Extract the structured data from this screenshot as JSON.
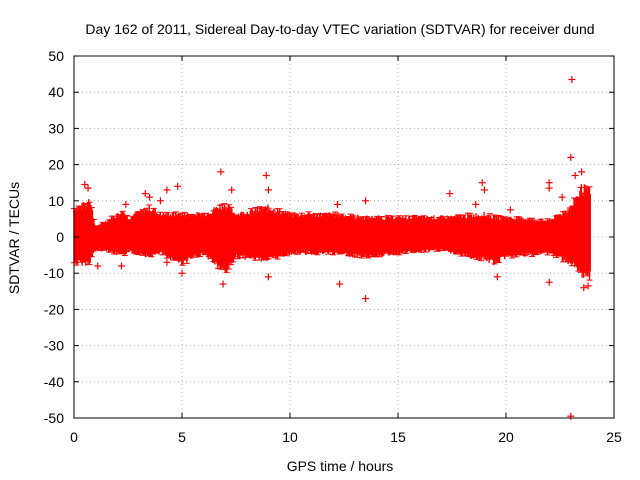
{
  "chart_data": {
    "type": "scatter",
    "title": "Day 162 of 2011, Sidereal Day-to-day VTEC variation (SDTVAR) for receiver dund",
    "xlabel": "GPS time / hours",
    "ylabel": "SDTVAR / TECUs",
    "xlim": [
      0,
      25
    ],
    "ylim": [
      -50,
      50
    ],
    "xticks": [
      0,
      5,
      10,
      15,
      20,
      25
    ],
    "yticks": [
      50,
      40,
      30,
      20,
      10,
      0,
      -10,
      -20,
      -30,
      -40,
      -50
    ],
    "grid": true,
    "marker": "+",
    "color": "#ff0000",
    "band": {
      "description": "dense band of points, upper/lower envelope in TECU",
      "x": [
        0,
        0.6,
        0.7,
        1.0,
        1.5,
        2.3,
        2.5,
        3.5,
        4.0,
        5.0,
        6.0,
        7.0,
        7.5,
        9.0,
        10.0,
        12.0,
        13.5,
        15.0,
        17.0,
        19.0,
        19.5,
        20.0,
        22.0,
        23.0,
        23.5,
        23.9
      ],
      "upper": [
        9,
        10,
        13,
        3,
        5,
        8,
        6,
        9,
        7,
        7,
        7,
        10,
        7,
        9,
        7,
        7,
        6,
        6,
        6,
        7,
        6,
        6,
        5,
        9,
        15,
        14
      ],
      "lower": [
        -8,
        -8,
        -8,
        -4,
        -4,
        -6,
        -4,
        -6,
        -5,
        -8,
        -5,
        -11,
        -6,
        -7,
        -5,
        -5,
        -6,
        -5,
        -4,
        -7,
        -8,
        -6,
        -5,
        -8,
        -12,
        -12
      ]
    },
    "outliers": [
      {
        "x": 0.5,
        "y": 14.5
      },
      {
        "x": 0.65,
        "y": 13.5
      },
      {
        "x": 1.1,
        "y": -8
      },
      {
        "x": 2.2,
        "y": -8
      },
      {
        "x": 2.4,
        "y": 9
      },
      {
        "x": 3.3,
        "y": 12
      },
      {
        "x": 3.5,
        "y": 11
      },
      {
        "x": 4.0,
        "y": 10
      },
      {
        "x": 4.3,
        "y": 13
      },
      {
        "x": 4.3,
        "y": -7
      },
      {
        "x": 4.8,
        "y": 14
      },
      {
        "x": 5.0,
        "y": -10
      },
      {
        "x": 6.8,
        "y": 18
      },
      {
        "x": 6.9,
        "y": -13
      },
      {
        "x": 7.3,
        "y": 13
      },
      {
        "x": 8.9,
        "y": 17
      },
      {
        "x": 9.0,
        "y": 13
      },
      {
        "x": 9.0,
        "y": -11
      },
      {
        "x": 12.2,
        "y": 9
      },
      {
        "x": 12.3,
        "y": -13
      },
      {
        "x": 13.5,
        "y": 10
      },
      {
        "x": 13.5,
        "y": -17
      },
      {
        "x": 17.4,
        "y": 12
      },
      {
        "x": 18.6,
        "y": 9
      },
      {
        "x": 18.9,
        "y": 15
      },
      {
        "x": 19.0,
        "y": 13
      },
      {
        "x": 19.6,
        "y": -11
      },
      {
        "x": 20.2,
        "y": 7.5
      },
      {
        "x": 22.0,
        "y": 15
      },
      {
        "x": 22.0,
        "y": 13.5
      },
      {
        "x": 22.0,
        "y": -12.5
      },
      {
        "x": 22.6,
        "y": 11
      },
      {
        "x": 23.0,
        "y": 22
      },
      {
        "x": 23.0,
        "y": -49.5
      },
      {
        "x": 23.05,
        "y": 43.5
      },
      {
        "x": 23.2,
        "y": 17
      },
      {
        "x": 23.5,
        "y": 18
      },
      {
        "x": 23.6,
        "y": -14
      },
      {
        "x": 23.8,
        "y": -13.5
      }
    ]
  }
}
